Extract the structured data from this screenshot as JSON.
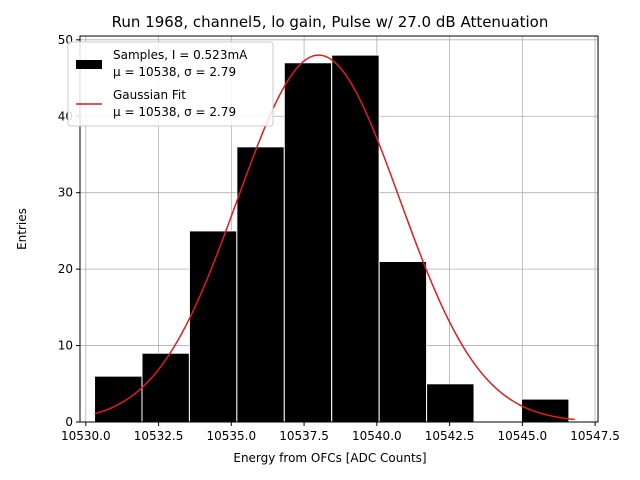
{
  "chart_data": {
    "type": "bar",
    "title": "Run 1968, channel5, lo gain, Pulse w/ 27.0 dB Attenuation",
    "xlabel": "Energy from OFCs [ADC Counts]",
    "ylabel": "Entries",
    "xlim": [
      10529.8,
      10547.6
    ],
    "ylim": [
      0,
      50.5
    ],
    "grid": true,
    "legend_position": "top-left",
    "x_ticks": [
      10530.0,
      10532.5,
      10535.0,
      10537.5,
      10540.0,
      10542.5,
      10545.0,
      10547.5
    ],
    "x_tick_labels": [
      "10530.0",
      "10532.5",
      "10535.0",
      "10537.5",
      "10540.0",
      "10542.5",
      "10545.0",
      "10547.5"
    ],
    "y_ticks": [
      0,
      10,
      20,
      30,
      40,
      50
    ],
    "y_tick_labels": [
      "0",
      "10",
      "20",
      "30",
      "40",
      "50"
    ],
    "bin_edges": [
      10530.3,
      10531.93,
      10533.56,
      10535.19,
      10536.82,
      10538.45,
      10540.08,
      10541.71,
      10543.34,
      10544.97,
      10546.6
    ],
    "values": [
      6,
      9,
      25,
      36,
      47,
      48,
      21,
      5,
      0,
      3
    ],
    "bar_color": "#000000",
    "bar_edge_color": "#ffffff",
    "series": [
      {
        "kind": "histogram",
        "legend_line1": "Samples, I = 0.523mA",
        "legend_line2": "μ = 10538, σ = 2.79"
      },
      {
        "kind": "fit",
        "legend_line1": "Gaussian Fit",
        "legend_line2": "μ = 10538, σ = 2.79",
        "color": "#e41a1c",
        "fit": {
          "mu": 10538.0,
          "sigma": 2.79,
          "peak": 48.0,
          "x_range": [
            10530.3,
            10546.8
          ]
        }
      }
    ]
  }
}
